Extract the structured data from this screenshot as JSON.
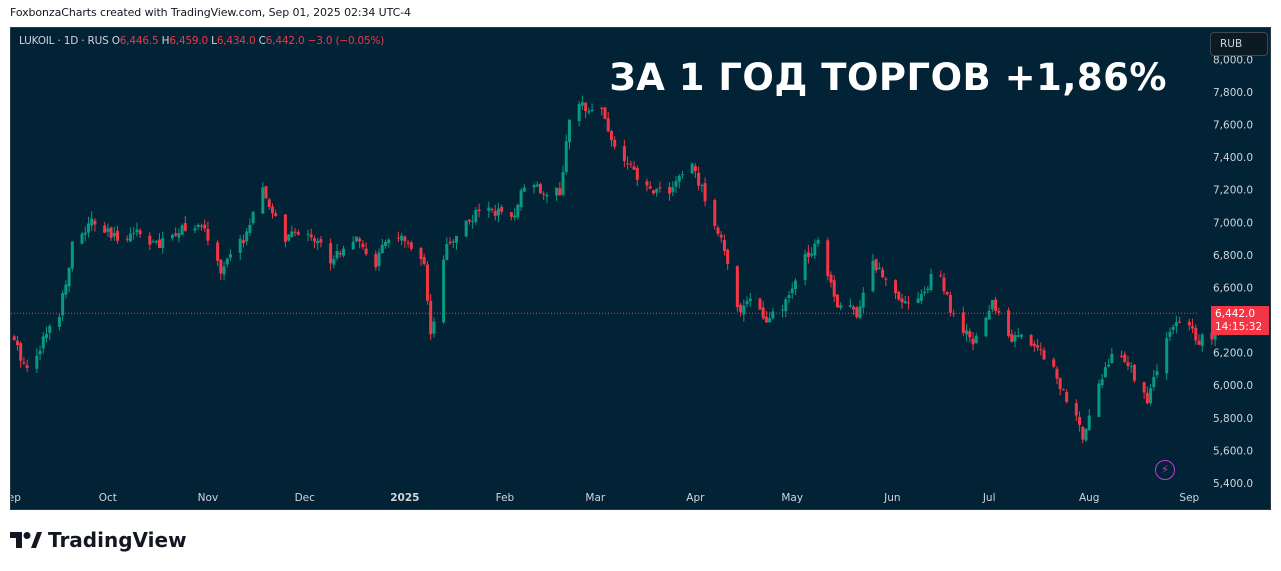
{
  "caption": "FoxbonzaCharts created with TradingView.com, Sep 01, 2025 02:34 UTC-4",
  "legend": {
    "symbol": "LUKOIL · 1D · RUS",
    "o_label": "O",
    "o_value": "6,446.5",
    "h_label": "H",
    "h_value": "6,459.0",
    "l_label": "L",
    "l_value": "6,434.0",
    "c_label": "C",
    "c_value": "6,442.0",
    "change": "−3.0 (−0.05%)"
  },
  "headline": "ЗА 1 ГОД ТОРГОВ +1,86%",
  "currency": "RUB",
  "price_tag": {
    "price": "6,442.0",
    "countdown": "14:15:32"
  },
  "brand": "TradingView",
  "icons": {
    "alert": "lightning-icon",
    "logo": "tradingview-logo-icon"
  },
  "colors": {
    "up": "#089981",
    "down": "#f23645",
    "background": "#022335",
    "last_price_line": "#f23645"
  },
  "chart_data": {
    "type": "candlestick",
    "symbol": "LUKOIL",
    "interval": "1D",
    "currency": "RUB",
    "ylim": [
      5400,
      8100
    ],
    "y_ticks": [
      5400,
      5600,
      5800,
      6000,
      6200,
      6400,
      6600,
      6800,
      7000,
      7200,
      7400,
      7600,
      7800,
      8000
    ],
    "y_tick_labels": [
      "5,400.0",
      "5,600.0",
      "5,800.0",
      "6,000.0",
      "6,200.0",
      "6,400.0",
      "6,600.0",
      "6,800.0",
      "7,000.0",
      "7,200.0",
      "7,400.0",
      "7,600.0",
      "7,800.0",
      "8,000.0"
    ],
    "x_ticks": [
      {
        "label": "Sep",
        "date": "2024-09-01"
      },
      {
        "label": "Oct",
        "date": "2024-10-01"
      },
      {
        "label": "Nov",
        "date": "2024-11-01"
      },
      {
        "label": "Dec",
        "date": "2024-12-01"
      },
      {
        "label": "2025",
        "date": "2025-01-01"
      },
      {
        "label": "Feb",
        "date": "2025-02-01"
      },
      {
        "label": "Mar",
        "date": "2025-03-01"
      },
      {
        "label": "Apr",
        "date": "2025-04-01"
      },
      {
        "label": "May",
        "date": "2025-05-01"
      },
      {
        "label": "Jun",
        "date": "2025-06-01"
      },
      {
        "label": "Jul",
        "date": "2025-07-01"
      },
      {
        "label": "Aug",
        "date": "2025-08-01"
      },
      {
        "label": "Sep",
        "date": "2025-09-01"
      }
    ],
    "x_range": [
      "2024-09-01",
      "2025-09-04"
    ],
    "last_price": 6442.0,
    "close_path": [
      [
        "2024-09-01",
        6300
      ],
      [
        "2024-09-06",
        6100
      ],
      [
        "2024-09-11",
        6280
      ],
      [
        "2024-09-16",
        6450
      ],
      [
        "2024-09-20",
        6850
      ],
      [
        "2024-09-26",
        7000
      ],
      [
        "2024-10-03",
        6900
      ],
      [
        "2024-10-10",
        6950
      ],
      [
        "2024-10-17",
        6850
      ],
      [
        "2024-10-24",
        6980
      ],
      [
        "2024-10-31",
        6950
      ],
      [
        "2024-11-05",
        6700
      ],
      [
        "2024-11-12",
        6900
      ],
      [
        "2024-11-18",
        7180
      ],
      [
        "2024-11-25",
        6900
      ],
      [
        "2024-12-02",
        6950
      ],
      [
        "2024-12-09",
        6780
      ],
      [
        "2024-12-16",
        6900
      ],
      [
        "2024-12-23",
        6750
      ],
      [
        "2024-12-28",
        6950
      ],
      [
        "2025-01-02",
        6850
      ],
      [
        "2025-01-07",
        6720
      ],
      [
        "2025-01-09",
        6280
      ],
      [
        "2025-01-14",
        6850
      ],
      [
        "2025-01-20",
        7000
      ],
      [
        "2025-01-27",
        7100
      ],
      [
        "2025-02-03",
        7000
      ],
      [
        "2025-02-08",
        7300
      ],
      [
        "2025-02-12",
        7200
      ],
      [
        "2025-02-18",
        7180
      ],
      [
        "2025-02-21",
        7620
      ],
      [
        "2025-02-25",
        7720
      ],
      [
        "2025-03-03",
        7700
      ],
      [
        "2025-03-06",
        7500
      ],
      [
        "2025-03-11",
        7350
      ],
      [
        "2025-03-17",
        7200
      ],
      [
        "2025-03-24",
        7200
      ],
      [
        "2025-03-31",
        7350
      ],
      [
        "2025-04-04",
        7150
      ],
      [
        "2025-04-09",
        6900
      ],
      [
        "2025-04-14",
        6450
      ],
      [
        "2025-04-18",
        6550
      ],
      [
        "2025-04-23",
        6380
      ],
      [
        "2025-04-29",
        6500
      ],
      [
        "2025-05-05",
        6780
      ],
      [
        "2025-05-09",
        6900
      ],
      [
        "2025-05-15",
        6500
      ],
      [
        "2025-05-21",
        6450
      ],
      [
        "2025-05-26",
        6750
      ],
      [
        "2025-06-01",
        6600
      ],
      [
        "2025-06-06",
        6500
      ],
      [
        "2025-06-12",
        6600
      ],
      [
        "2025-06-15",
        6750
      ],
      [
        "2025-06-19",
        6450
      ],
      [
        "2025-06-26",
        6250
      ],
      [
        "2025-07-02",
        6500
      ],
      [
        "2025-07-08",
        6300
      ],
      [
        "2025-07-14",
        6270
      ],
      [
        "2025-07-20",
        6150
      ],
      [
        "2025-07-25",
        5900
      ],
      [
        "2025-07-30",
        5700
      ],
      [
        "2025-08-03",
        5950
      ],
      [
        "2025-08-08",
        6200
      ],
      [
        "2025-08-14",
        6100
      ],
      [
        "2025-08-19",
        5900
      ],
      [
        "2025-08-25",
        6300
      ],
      [
        "2025-08-30",
        6400
      ],
      [
        "2025-09-04",
        6280
      ],
      [
        "2025-09-09",
        6300
      ],
      [
        "2025-09-12",
        6442
      ]
    ]
  }
}
